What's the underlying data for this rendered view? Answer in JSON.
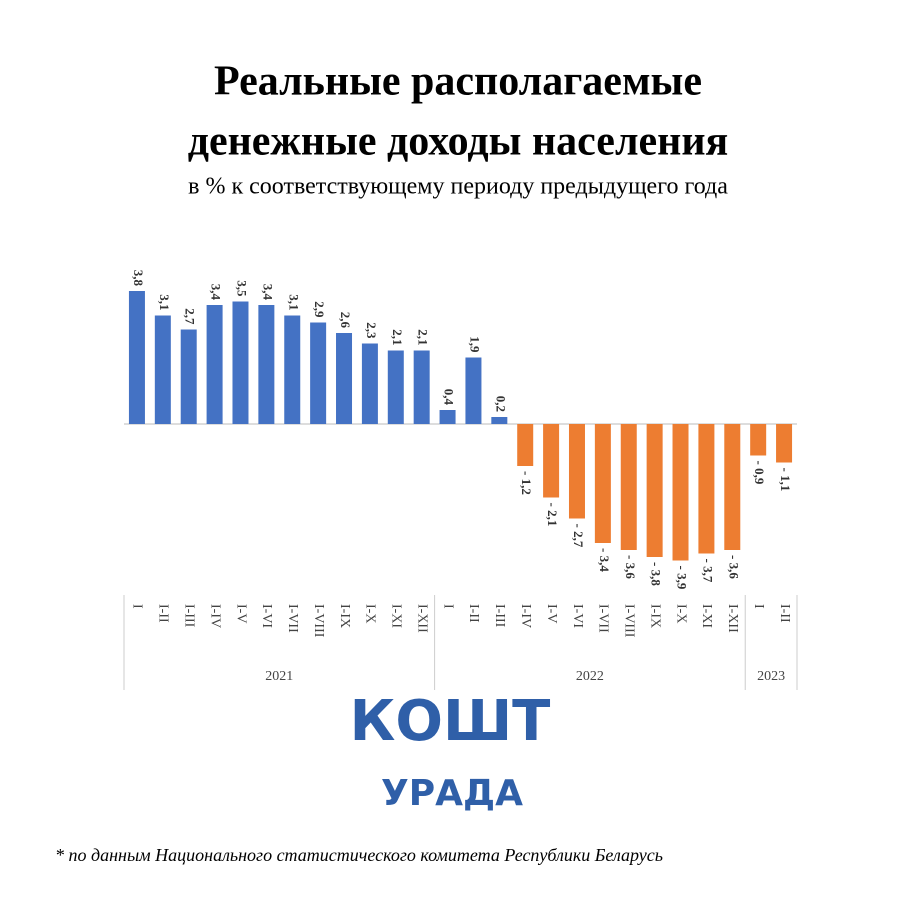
{
  "chart_data": {
    "type": "bar",
    "title": [
      "Реальные располагаемые",
      "денежные доходы населения"
    ],
    "subtitle": "в %  к соответствующему периоду предыдущего года",
    "colors": {
      "positive": "#4472c4",
      "negative": "#ed7d31"
    },
    "groups": [
      {
        "name": "2021",
        "categories": [
          "I",
          "I-II",
          "I-III",
          "I-IV",
          "I-V",
          "I-VI",
          "I-VII",
          "I-VIII",
          "I-IX",
          "I-X",
          "I-XI",
          "I-XII"
        ],
        "values": [
          3.8,
          3.1,
          2.7,
          3.4,
          3.5,
          3.4,
          3.1,
          2.9,
          2.6,
          2.3,
          2.1,
          2.1
        ],
        "value_labels": [
          "3,8",
          "3,1",
          "2,7",
          "3,4",
          "3,5",
          "3,4",
          "3,1",
          "2,9",
          "2,6",
          "2,3",
          "2,1",
          "2,1"
        ]
      },
      {
        "name": "2022",
        "categories": [
          "I",
          "I-II",
          "I-III",
          "I-IV",
          "I-V",
          "I-VI",
          "I-VII",
          "I-VIII",
          "I-IX",
          "I-X",
          "I-XI",
          "I-XII"
        ],
        "values": [
          0.4,
          1.9,
          0.2,
          -1.2,
          -2.1,
          -2.7,
          -3.4,
          -3.6,
          -3.8,
          -3.9,
          -3.7,
          -3.6
        ],
        "value_labels": [
          "0,4",
          "1,9",
          "0,2",
          "- 1,2",
          "- 2,1",
          "- 2,7",
          "- 3,4",
          "- 3,6",
          "- 3,8",
          "- 3,9",
          "- 3,7",
          "- 3,6"
        ]
      },
      {
        "name": "2023",
        "categories": [
          "I",
          "I-II"
        ],
        "values": [
          -0.9,
          -1.1
        ],
        "value_labels": [
          "- 0,9",
          "- 1,1"
        ]
      }
    ]
  },
  "logo": [
    "КОШТ",
    "УРАДА"
  ],
  "footnote": "* по данным Национального статистического комитета Республики Беларусь"
}
